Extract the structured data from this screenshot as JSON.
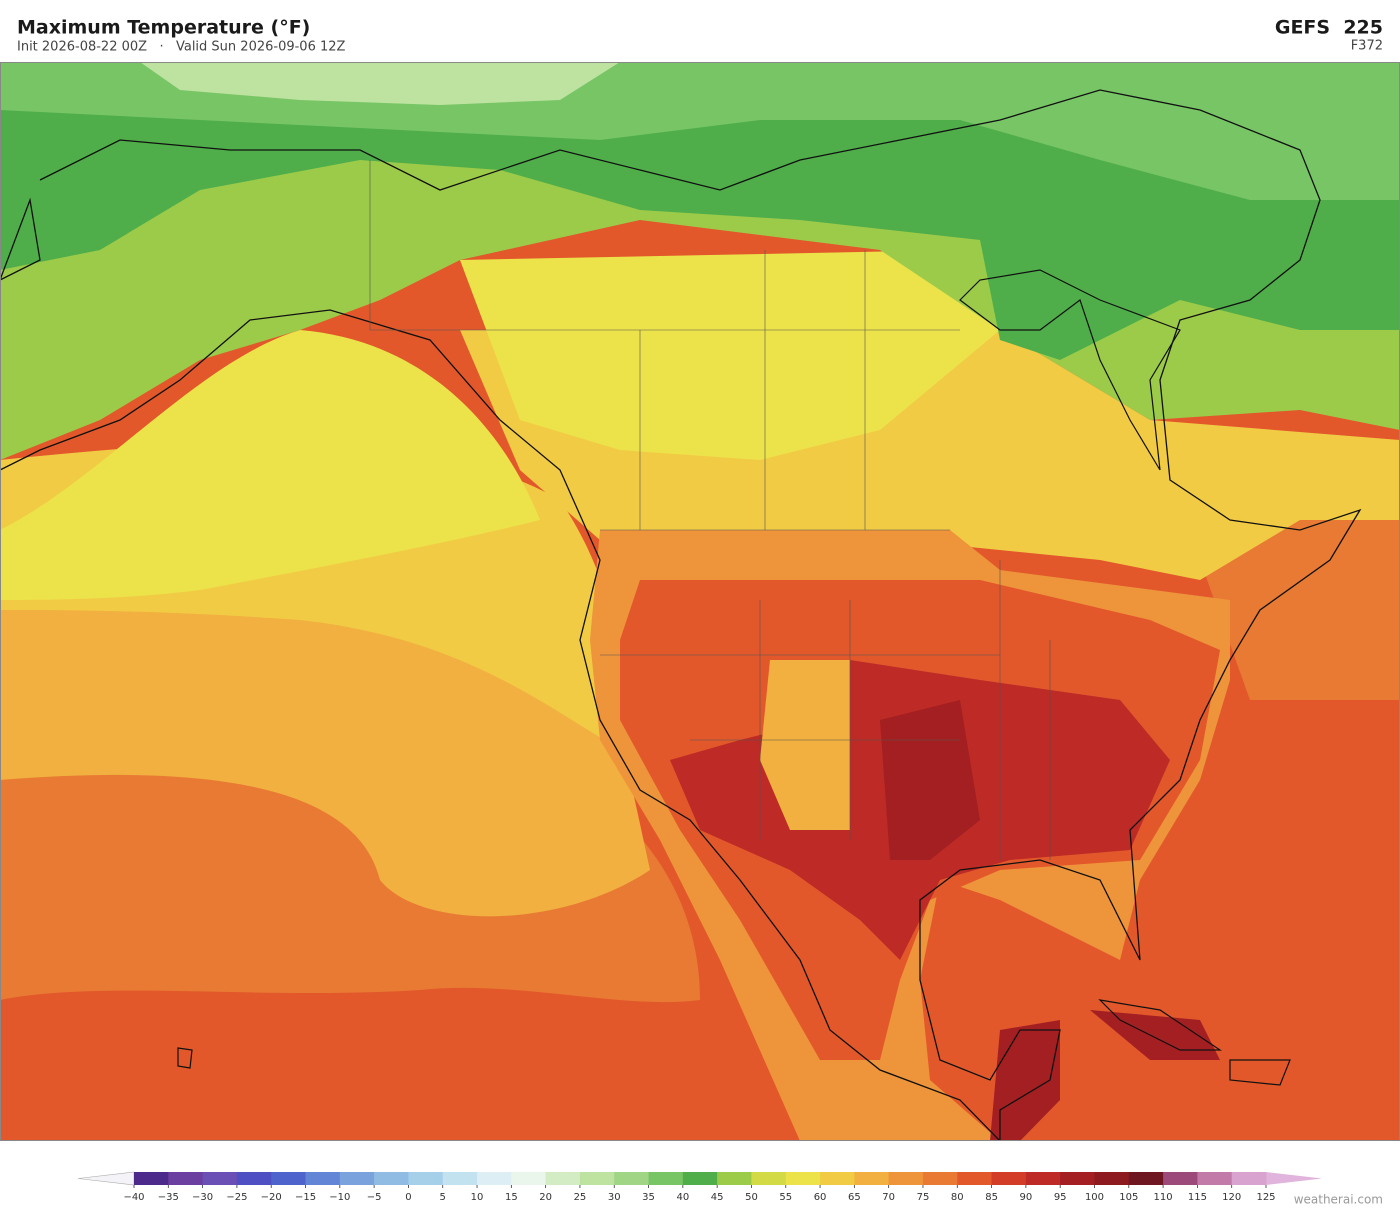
{
  "header": {
    "title": "Maximum Temperature  (°F)",
    "subtitle": "Init 2026-08-22 00Z   ·   Valid Sun 2026-09-06 12Z",
    "model": "GEFS  225",
    "forecast_hour": "F372"
  },
  "colorbar": {
    "ticks": [
      {
        "value": -40,
        "label": "−40"
      },
      {
        "value": -35,
        "label": "−35"
      },
      {
        "value": -30,
        "label": "−30"
      },
      {
        "value": -25,
        "label": "−25"
      },
      {
        "value": -20,
        "label": "−20"
      },
      {
        "value": -15,
        "label": "−15"
      },
      {
        "value": -10,
        "label": "−10"
      },
      {
        "value": -5,
        "label": "−5"
      },
      0,
      5,
      10,
      15,
      20,
      25,
      30,
      35,
      40,
      45,
      50,
      55,
      60,
      65,
      70,
      75,
      80,
      85,
      90,
      95,
      100,
      105,
      110,
      115,
      120,
      125
    ],
    "colors": [
      "#4b2a8c",
      "#6b3fa0",
      "#6a4fb5",
      "#4d4fc2",
      "#4f63cc",
      "#6385d6",
      "#7aa2dc",
      "#90bce3",
      "#a6d0ea",
      "#c2e2f0",
      "#ddeff5",
      "#eaf5ec",
      "#d3ecc3",
      "#bee3a0",
      "#9fd584",
      "#78c566",
      "#4fae4a",
      "#9ccb4a",
      "#d2db46",
      "#ece34a",
      "#f2cb45",
      "#f1b03f",
      "#ee943a",
      "#e97a33",
      "#e2582b",
      "#d33d28",
      "#be2a25",
      "#a31f22",
      "#8c1a1f",
      "#6e1720",
      "#9c4a7a",
      "#c27aa8",
      "#d9a3cf"
    ],
    "under_color": "#f4f4f8",
    "over_color": "#e0b4dc"
  },
  "watermark": "weatherai.com"
}
